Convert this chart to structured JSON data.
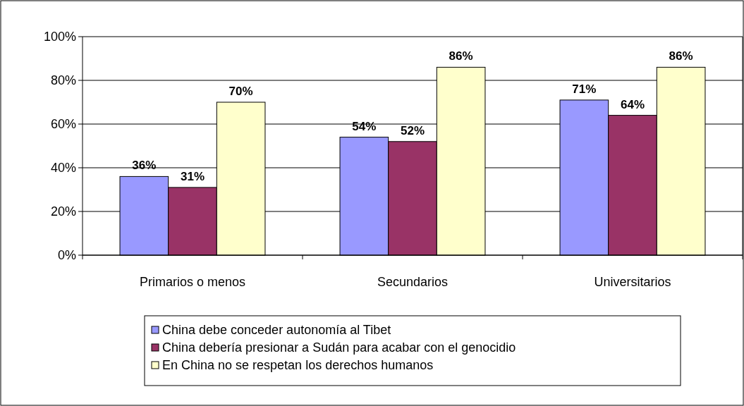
{
  "chart_data": {
    "type": "bar",
    "categories": [
      "Primarios o menos",
      "Secundarios",
      "Universitarios"
    ],
    "series": [
      {
        "name": "China debe conceder autonomía al Tibet",
        "color": "#9999ff",
        "values": [
          36,
          54,
          71
        ],
        "value_labels": [
          "36%",
          "54%",
          "71%"
        ]
      },
      {
        "name": "China debería presionar a Sudán para acabar con el genocidio",
        "color": "#993366",
        "values": [
          31,
          52,
          64
        ],
        "value_labels": [
          "31%",
          "52%",
          "64%"
        ]
      },
      {
        "name": "En China no se respetan los derechos humanos",
        "color": "#ffffcc",
        "values": [
          70,
          86,
          86
        ],
        "value_labels": [
          "70%",
          "86%",
          "86%"
        ]
      }
    ],
    "ylim": [
      0,
      100
    ],
    "yticks": [
      {
        "value": 0,
        "label": "0%"
      },
      {
        "value": 20,
        "label": "20%"
      },
      {
        "value": 40,
        "label": "40%"
      },
      {
        "value": 60,
        "label": "60%"
      },
      {
        "value": 80,
        "label": "80%"
      },
      {
        "value": 100,
        "label": "100%"
      }
    ],
    "grid": "y",
    "legend": "bottom"
  }
}
